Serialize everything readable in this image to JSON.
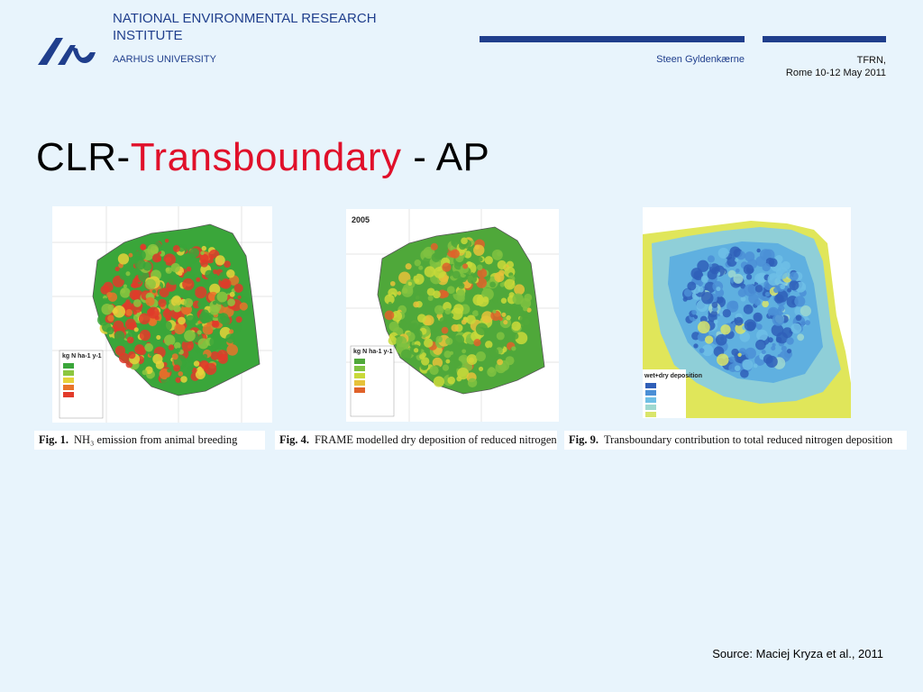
{
  "header": {
    "institute": "NATIONAL ENVIRONMENTAL RESEARCH INSTITUTE",
    "university": "AARHUS UNIVERSITY",
    "author": "Steen Gyldenkærne",
    "event_line1": "TFRN,",
    "event_line2": "Rome 10-12 May 2011",
    "logo_icon": "aarhus-university-logo",
    "brand_color": "#1f3e8c"
  },
  "slide": {
    "title_prefix": "CLR-",
    "title_highlight": "Transboundary",
    "title_suffix": " - AP",
    "highlight_color": "#e0102a"
  },
  "figures": [
    {
      "caption_label": "Fig. 1.",
      "caption_text": "NH₃ emission from animal breeding",
      "legend_title": "kg N ha-1 y-1",
      "palette": [
        "#3aa63a",
        "#8cc63f",
        "#e6d23a",
        "#e8742a",
        "#e23a2a"
      ]
    },
    {
      "caption_label": "Fig. 4.",
      "caption_text": "FRAME modelled dry deposition of reduced nitrogen",
      "legend_title": "kg N ha-1 y-1",
      "year": "2005",
      "palette": [
        "#4fa83a",
        "#7fc241",
        "#c9d93a",
        "#e6c23a",
        "#e0622a"
      ]
    },
    {
      "caption_label": "Fig. 9.",
      "caption_text": "Transboundary contribution to total reduced nitrogen deposition",
      "legend_title": "wet+dry deposition",
      "palette": [
        "#2f5fb8",
        "#4b8fd6",
        "#6fbfe6",
        "#9ed8d0",
        "#d9e56a"
      ]
    }
  ],
  "footer": {
    "source": "Source: Maciej Kryza et al., 2011"
  }
}
